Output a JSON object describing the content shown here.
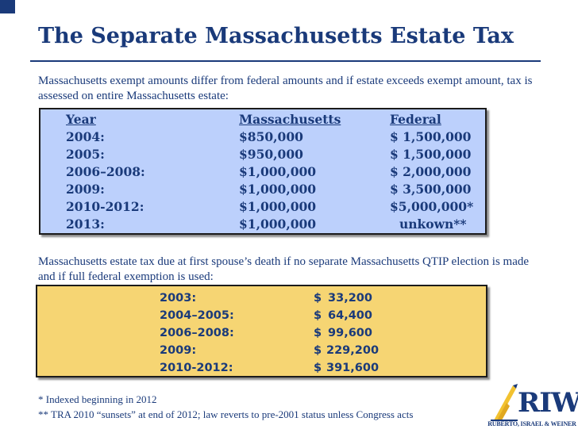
{
  "slide": {
    "title": "The Separate Massachusetts Estate Tax",
    "intro": "Massachusetts exempt amounts differ from federal amounts and if estate exceeds exempt amount, tax is assessed on entire Massachusetts estate:",
    "exemption_table": {
      "headers": {
        "year": "Year",
        "massachusetts": "Massachusetts",
        "federal": "Federal"
      },
      "rows": [
        {
          "year": "2004:",
          "massachusetts": "$850,000",
          "federal": "$ 1,500,000"
        },
        {
          "year": "2005:",
          "massachusetts": "$950,000",
          "federal": "$ 1,500,000"
        },
        {
          "year": "2006–2008:",
          "massachusetts": "$1,000,000",
          "federal": "$ 2,000,000"
        },
        {
          "year": "2009:",
          "massachusetts": "$1,000,000",
          "federal": "$ 3,500,000"
        },
        {
          "year": "2010-2012:",
          "massachusetts": "$1,000,000",
          "federal": "$5,000,000*"
        },
        {
          "year": "2013:",
          "massachusetts": "$1,000,000",
          "federal": "unkown**"
        }
      ]
    },
    "description": "Massachusetts estate tax due at first spouse’s death if no separate Massachusetts QTIP election is made and if full federal exemption is used:",
    "tax_table": {
      "rows": [
        {
          "year": "2003:",
          "currency": "$",
          "amount": "33,200"
        },
        {
          "year": "2004–2005:",
          "currency": "$",
          "amount": "64,400"
        },
        {
          "year": "2006–2008:",
          "currency": "$",
          "amount": "99,600"
        },
        {
          "year": "2009:",
          "currency": "$",
          "amount": "229,200"
        },
        {
          "year": "2010-2012:",
          "currency": "$",
          "amount": "391,600"
        }
      ]
    },
    "footnotes": [
      "* Indexed beginning in 2012",
      "** TRA 2010 “sunsets” at end of 2012; law reverts to pre-2001 status unless Congress acts"
    ],
    "logo": {
      "text": "RIW",
      "subtitle": "RUBERTO, ISRAEL & WEINER",
      "icon": "flame-pen-icon"
    }
  },
  "colors": {
    "accent": "#1a3a7a",
    "blue_panel": "#bcd0fc",
    "yellow_panel": "#f6d573",
    "logo_gold": "#f2c230"
  }
}
